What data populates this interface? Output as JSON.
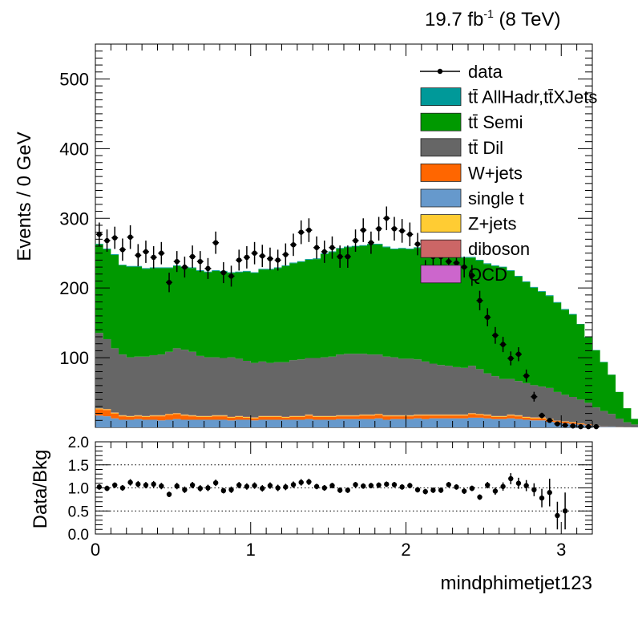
{
  "header": {
    "lumi": "19.7 fb",
    "lumi_exp": "-1",
    "energy": " (8 TeV)"
  },
  "chart_data": [
    {
      "type": "area",
      "title": "",
      "xlabel": "",
      "ylabel": "Events / 0 GeV",
      "xlim": [
        0,
        3.2
      ],
      "ylim": [
        0,
        550
      ],
      "yticks": [
        "100",
        "200",
        "300",
        "400",
        "500"
      ],
      "yticks_values": [
        100,
        200,
        300,
        400,
        500
      ],
      "bin_width": 0.05,
      "bins_start": 0,
      "stacking_order": [
        "W+jets",
        "single t",
        "Z+jets",
        "diboson",
        "QCD",
        "tt Dil",
        "tt Semi",
        "tt AllHadr,ttXJets"
      ],
      "legend_position": "top-right",
      "legend": [
        {
          "label": "data",
          "kind": "marker",
          "color": "#000000"
        },
        {
          "label": "tt̄ AllHadr,tt̄XJets",
          "kind": "box",
          "color": "#009999"
        },
        {
          "label": "tt̄ Semi",
          "kind": "box",
          "color": "#009900"
        },
        {
          "label": "tt̄ Dil",
          "kind": "box",
          "color": "#666666"
        },
        {
          "label": "W+jets",
          "kind": "box",
          "color": "#ff6600"
        },
        {
          "label": "single t",
          "kind": "box",
          "color": "#6699cc"
        },
        {
          "label": "Z+jets",
          "kind": "box",
          "color": "#ffcc33"
        },
        {
          "label": "diboson",
          "kind": "box",
          "color": "#cc6666"
        },
        {
          "label": "QCD",
          "kind": "box",
          "color": "#cc66cc"
        }
      ],
      "series": [
        {
          "name": "single t",
          "color": "#6699cc",
          "values": [
            17,
            16,
            13,
            11,
            11,
            12,
            11,
            11,
            10,
            11,
            12,
            11,
            11,
            11,
            11,
            11,
            11,
            10,
            11,
            11,
            10,
            11,
            11,
            11,
            11,
            11,
            11,
            12,
            11,
            11,
            11,
            12,
            12,
            12,
            12,
            12,
            13,
            11,
            12,
            12,
            12,
            13,
            12,
            13,
            13,
            13,
            13,
            13,
            14,
            14,
            13,
            12,
            12,
            13,
            12,
            11,
            10,
            10,
            8,
            7,
            6,
            5,
            4,
            3,
            2,
            1,
            1,
            0.5,
            0.3,
            0.1
          ]
        },
        {
          "name": "W+jets",
          "color": "#ff6600",
          "values": [
            9,
            9,
            7,
            5,
            4,
            4,
            4,
            5,
            6,
            7,
            7,
            6,
            5,
            4,
            4,
            5,
            5,
            4,
            4,
            3,
            3,
            4,
            4,
            4,
            3,
            4,
            4,
            5,
            4,
            4,
            4,
            4,
            4,
            4,
            5,
            5,
            5,
            5,
            4,
            4,
            4,
            4,
            5,
            4,
            4,
            4,
            4,
            4,
            5,
            4,
            4,
            3,
            3,
            4,
            4,
            3,
            3,
            3,
            3,
            2,
            2,
            2,
            1.5,
            1,
            0.5,
            0.5,
            0.3,
            0.2,
            0.1,
            0
          ]
        },
        {
          "name": "Z+jets",
          "color": "#ffcc33",
          "values": [
            1,
            1,
            1,
            1,
            1,
            1,
            1,
            1,
            1,
            1,
            1,
            1,
            1,
            1,
            1,
            1,
            1,
            1,
            1,
            1,
            1,
            1,
            1,
            1,
            1,
            1,
            1,
            1,
            1,
            1,
            1,
            1,
            1,
            1,
            1,
            1,
            1,
            1,
            1,
            1,
            1,
            1,
            1,
            1,
            1,
            1,
            1,
            1,
            1,
            1,
            1,
            1,
            1,
            1,
            1,
            1,
            1,
            1,
            1,
            0.5,
            0.5,
            0.5,
            0.3,
            0.2,
            0.1,
            0,
            0,
            0,
            0,
            0
          ]
        },
        {
          "name": "diboson",
          "color": "#cc6666",
          "values": [
            0.5,
            0.5,
            0.5,
            0.5,
            0.5,
            0.5,
            0.5,
            0.5,
            0.5,
            0.5,
            0.5,
            0.5,
            0.5,
            0.5,
            0.5,
            0.5,
            0.5,
            0.5,
            0.5,
            0.5,
            0.5,
            0.5,
            0.5,
            0.5,
            0.5,
            0.5,
            0.5,
            0.5,
            0.5,
            0.5,
            0.5,
            0.5,
            0.5,
            0.5,
            0.5,
            0.5,
            0.5,
            0.5,
            0.5,
            0.5,
            0.5,
            0.5,
            0.5,
            0.5,
            0.5,
            0.5,
            0.5,
            0.5,
            0.5,
            0.5,
            0.5,
            0.5,
            0.5,
            0.5,
            0.5,
            0.5,
            0.5,
            0.5,
            0.5,
            0.3,
            0.3,
            0.2,
            0.1,
            0.1,
            0,
            0,
            0,
            0,
            0,
            0
          ]
        },
        {
          "name": "QCD",
          "color": "#cc66cc",
          "values": [
            0,
            0,
            0,
            0,
            0,
            0,
            0,
            0,
            0,
            0,
            0,
            0,
            0,
            0,
            0,
            0,
            0,
            0,
            0,
            0,
            0,
            0,
            0,
            0,
            0,
            0,
            0,
            0,
            0,
            0,
            0,
            0,
            0,
            0,
            0,
            0,
            0,
            0,
            0,
            0,
            0,
            0,
            0,
            0,
            0,
            0,
            0,
            0,
            0,
            0,
            0,
            0,
            0,
            0,
            0,
            0,
            0,
            0,
            0,
            0,
            0,
            0,
            0,
            0,
            0,
            0,
            0,
            0,
            0,
            0
          ]
        },
        {
          "name": "tt̄ Dil",
          "color": "#666666",
          "values": [
            108,
            100,
            92,
            87,
            84,
            84,
            85,
            86,
            87,
            89,
            93,
            93,
            91,
            86,
            84,
            83,
            82,
            85,
            82,
            80,
            78,
            78,
            76,
            77,
            78,
            80,
            81,
            81,
            83,
            84,
            85,
            87,
            88,
            88,
            87,
            86,
            85,
            84,
            83,
            81,
            81,
            79,
            76,
            73,
            71,
            70,
            68,
            67,
            68,
            64,
            59,
            57,
            53,
            51,
            49,
            48,
            46,
            44,
            44,
            41,
            38,
            36,
            34,
            31,
            26,
            22,
            18,
            12,
            7,
            4
          ]
        },
        {
          "name": "tt̄ Semi",
          "color": "#009900",
          "values": [
            127,
            129,
            134,
            128,
            130,
            129,
            126,
            125,
            124,
            120,
            118,
            118,
            120,
            122,
            122,
            124,
            124,
            121,
            124,
            128,
            129,
            132,
            134,
            135,
            138,
            139,
            140,
            141,
            142,
            148,
            150,
            152,
            153,
            154,
            155,
            158,
            158,
            157,
            155,
            158,
            157,
            160,
            161,
            163,
            163,
            162,
            160,
            158,
            155,
            156,
            157,
            158,
            160,
            155,
            150,
            145,
            140,
            136,
            132,
            128,
            122,
            118,
            108,
            94,
            82,
            70,
            56,
            38,
            20,
            8
          ]
        },
        {
          "name": "tt̄ AllHadr,tt̄XJets",
          "color": "#009999",
          "values": [
            1,
            1,
            1,
            1,
            1,
            1,
            1,
            1,
            1,
            1,
            1,
            1,
            1,
            1,
            1,
            1,
            1,
            1,
            1,
            1,
            1,
            1,
            1,
            1,
            1,
            1,
            1,
            1,
            1,
            1,
            1,
            1,
            1,
            1,
            1,
            1,
            1,
            1,
            1,
            1,
            1,
            1,
            1,
            1,
            1,
            1,
            1,
            1,
            1,
            1,
            1,
            1,
            1,
            1,
            1,
            1,
            1,
            1,
            1,
            1,
            1,
            1,
            0.5,
            0.5,
            0.5,
            0.5,
            0.3,
            0.2,
            0.1,
            0.1
          ]
        },
        {
          "name": "data",
          "color": "#000000",
          "values": [
            277,
            268,
            272,
            255,
            273,
            247,
            252,
            244,
            250,
            208,
            238,
            230,
            245,
            238,
            228,
            265,
            222,
            217,
            240,
            244,
            250,
            246,
            242,
            240,
            248,
            262,
            280,
            283,
            258,
            252,
            258,
            245,
            245,
            268,
            283,
            265,
            285,
            300,
            285,
            282,
            277,
            263,
            225,
            245,
            245,
            238,
            236,
            230,
            218,
            182,
            158,
            132,
            119,
            99,
            105,
            74,
            44,
            17,
            10,
            5,
            3,
            2,
            1,
            1,
            1,
            0,
            0,
            0,
            0,
            0
          ],
          "errors": [
            17,
            16,
            16,
            16,
            17,
            16,
            16,
            16,
            16,
            14,
            15,
            15,
            16,
            15,
            15,
            16,
            15,
            15,
            15,
            16,
            16,
            16,
            16,
            15,
            16,
            16,
            17,
            17,
            16,
            16,
            16,
            16,
            16,
            16,
            17,
            16,
            17,
            17,
            17,
            17,
            17,
            16,
            15,
            16,
            16,
            15,
            15,
            15,
            15,
            14,
            13,
            12,
            11,
            10,
            10,
            9,
            7,
            4,
            3,
            2,
            2,
            1.5,
            1,
            1,
            1,
            0,
            0,
            0,
            0,
            0
          ]
        }
      ]
    },
    {
      "type": "scatter",
      "title": "",
      "xlabel": "mindphimetjet123",
      "ylabel": "Data/Bkg",
      "xlim": [
        0,
        3.2
      ],
      "ylim": [
        0,
        2
      ],
      "xticks": [
        "0",
        "1",
        "2",
        "3"
      ],
      "xticks_values": [
        0,
        1,
        2,
        3
      ],
      "yticks": [
        "0.0",
        "0.5",
        "1.0",
        "1.5",
        "2.0"
      ],
      "yticks_values": [
        0,
        0.5,
        1.0,
        1.5,
        2.0
      ],
      "reference_lines": [
        0.5,
        1.0,
        1.5
      ],
      "series": [
        {
          "name": "data/bkg",
          "x": [
            0.025,
            0.075,
            0.125,
            0.175,
            0.225,
            0.275,
            0.325,
            0.375,
            0.425,
            0.475,
            0.525,
            0.575,
            0.625,
            0.675,
            0.725,
            0.775,
            0.825,
            0.875,
            0.925,
            0.975,
            1.025,
            1.075,
            1.125,
            1.175,
            1.225,
            1.275,
            1.325,
            1.375,
            1.425,
            1.475,
            1.525,
            1.575,
            1.625,
            1.675,
            1.725,
            1.775,
            1.825,
            1.875,
            1.925,
            1.975,
            2.025,
            2.075,
            2.125,
            2.175,
            2.225,
            2.275,
            2.325,
            2.375,
            2.425,
            2.475,
            2.525,
            2.575,
            2.625,
            2.675,
            2.725,
            2.775,
            2.825,
            2.875,
            2.925,
            2.975,
            3.025
          ],
          "y": [
            1.02,
            0.99,
            1.06,
            1.0,
            1.12,
            1.08,
            1.06,
            1.08,
            1.04,
            0.86,
            1.04,
            0.96,
            1.06,
            0.99,
            1.0,
            1.11,
            0.94,
            0.96,
            1.06,
            1.03,
            1.05,
            0.99,
            1.05,
            1.0,
            1.02,
            1.07,
            1.12,
            1.13,
            1.03,
            1.0,
            1.05,
            0.95,
            0.95,
            1.07,
            1.04,
            1.05,
            1.06,
            1.08,
            1.07,
            1.02,
            1.05,
            0.96,
            0.92,
            0.95,
            0.95,
            1.07,
            1.02,
            0.93,
            0.99,
            0.8,
            1.06,
            0.93,
            1.03,
            1.2,
            1.1,
            1.05,
            0.96,
            0.78,
            0.9,
            0.4,
            0.5
          ],
          "errors": [
            0.06,
            0.06,
            0.06,
            0.06,
            0.07,
            0.07,
            0.07,
            0.07,
            0.07,
            0.06,
            0.07,
            0.07,
            0.07,
            0.07,
            0.07,
            0.07,
            0.06,
            0.07,
            0.07,
            0.07,
            0.07,
            0.07,
            0.07,
            0.07,
            0.07,
            0.07,
            0.07,
            0.07,
            0.06,
            0.06,
            0.06,
            0.06,
            0.06,
            0.06,
            0.06,
            0.06,
            0.06,
            0.06,
            0.06,
            0.06,
            0.06,
            0.06,
            0.06,
            0.06,
            0.06,
            0.06,
            0.06,
            0.06,
            0.06,
            0.06,
            0.07,
            0.08,
            0.09,
            0.12,
            0.12,
            0.12,
            0.14,
            0.2,
            0.3,
            0.3,
            0.4
          ]
        }
      ]
    }
  ]
}
